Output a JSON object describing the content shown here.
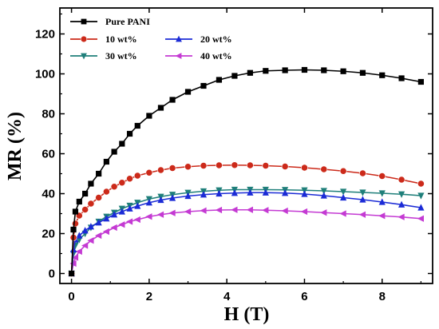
{
  "chart_data": {
    "type": "scatter",
    "title": "",
    "xlabel": "H (T)",
    "ylabel": "MR (%)",
    "xlim": [
      -0.3,
      9.3
    ],
    "ylim": [
      -5,
      133
    ],
    "xticks": [
      0,
      2,
      4,
      6,
      8
    ],
    "yticks": [
      0,
      20,
      40,
      60,
      80,
      100,
      120
    ],
    "grid": false,
    "legend_position": "top-left",
    "series": [
      {
        "name": "Pure PANI",
        "color": "#000000",
        "marker": "square",
        "x": [
          0,
          0.05,
          0.1,
          0.2,
          0.35,
          0.5,
          0.7,
          0.9,
          1.1,
          1.3,
          1.5,
          1.7,
          2.0,
          2.3,
          2.6,
          3.0,
          3.4,
          3.8,
          4.2,
          4.6,
          5.0,
          5.5,
          6.0,
          6.5,
          7.0,
          7.5,
          8.0,
          8.5,
          9.0
        ],
        "y": [
          0,
          22,
          31,
          36,
          40,
          45,
          50,
          56,
          61,
          65,
          70,
          74,
          79,
          83,
          87,
          91,
          94,
          97,
          99,
          100.5,
          101.5,
          101.8,
          102,
          101.8,
          101.3,
          100.5,
          99.3,
          97.8,
          96
        ]
      },
      {
        "name": "10 wt%",
        "color": "#cc2a1a",
        "marker": "circle",
        "x": [
          0,
          0.05,
          0.1,
          0.2,
          0.35,
          0.5,
          0.7,
          0.9,
          1.1,
          1.3,
          1.5,
          1.7,
          2.0,
          2.3,
          2.6,
          3.0,
          3.4,
          3.8,
          4.2,
          4.6,
          5.0,
          5.5,
          6.0,
          6.5,
          7.0,
          7.5,
          8.0,
          8.5,
          9.0
        ],
        "y": [
          0,
          18,
          25,
          29,
          32,
          35,
          38,
          41,
          43.5,
          45.5,
          47.5,
          49,
          50.5,
          51.8,
          52.8,
          53.5,
          54,
          54.2,
          54.3,
          54.2,
          54,
          53.6,
          53,
          52.2,
          51.3,
          50.2,
          48.8,
          47,
          45
        ]
      },
      {
        "name": "20 wt%",
        "color": "#1b2bd6",
        "marker": "triangle-up",
        "x": [
          0,
          0.05,
          0.1,
          0.2,
          0.35,
          0.5,
          0.7,
          0.9,
          1.1,
          1.3,
          1.5,
          1.7,
          2.0,
          2.3,
          2.6,
          3.0,
          3.4,
          3.8,
          4.2,
          4.6,
          5.0,
          5.5,
          6.0,
          6.5,
          7.0,
          7.5,
          8.0,
          8.5,
          9.0
        ],
        "y": [
          0,
          12,
          17,
          19,
          21.5,
          23.5,
          25.5,
          27.5,
          29.5,
          31,
          32.5,
          33.8,
          35.5,
          36.8,
          37.8,
          38.8,
          39.5,
          40,
          40.3,
          40.5,
          40.5,
          40.3,
          39.8,
          39,
          38,
          37,
          35.8,
          34.5,
          33
        ]
      },
      {
        "name": "30 wt%",
        "color": "#1f7f7a",
        "marker": "triangle-down",
        "x": [
          0,
          0.05,
          0.1,
          0.2,
          0.35,
          0.5,
          0.7,
          0.9,
          1.1,
          1.3,
          1.5,
          1.7,
          2.0,
          2.3,
          2.6,
          3.0,
          3.4,
          3.8,
          4.2,
          4.6,
          5.0,
          5.5,
          6.0,
          6.5,
          7.0,
          7.5,
          8.0,
          8.5,
          9.0
        ],
        "y": [
          0,
          10,
          14,
          17,
          20,
          23,
          26,
          28.5,
          30.5,
          32.5,
          34,
          35.5,
          37.3,
          38.5,
          39.5,
          40.5,
          41.2,
          41.7,
          42,
          42,
          42,
          41.9,
          41.7,
          41.4,
          41,
          40.6,
          40.2,
          39.7,
          39
        ]
      },
      {
        "name": "40 wt%",
        "color": "#c43ad3",
        "marker": "triangle-left",
        "x": [
          0,
          0.05,
          0.1,
          0.2,
          0.35,
          0.5,
          0.7,
          0.9,
          1.1,
          1.3,
          1.5,
          1.7,
          2.0,
          2.3,
          2.6,
          3.0,
          3.4,
          3.8,
          4.2,
          4.6,
          5.0,
          5.5,
          6.0,
          6.5,
          7.0,
          7.5,
          8.0,
          8.5,
          9.0
        ],
        "y": [
          0,
          5,
          8,
          11,
          14,
          16.5,
          19,
          21,
          23,
          24.5,
          26,
          27,
          28.5,
          29.5,
          30.3,
          31,
          31.5,
          31.8,
          31.9,
          31.9,
          31.7,
          31.4,
          31,
          30.5,
          30,
          29.5,
          28.9,
          28.3,
          27.5
        ]
      }
    ]
  }
}
